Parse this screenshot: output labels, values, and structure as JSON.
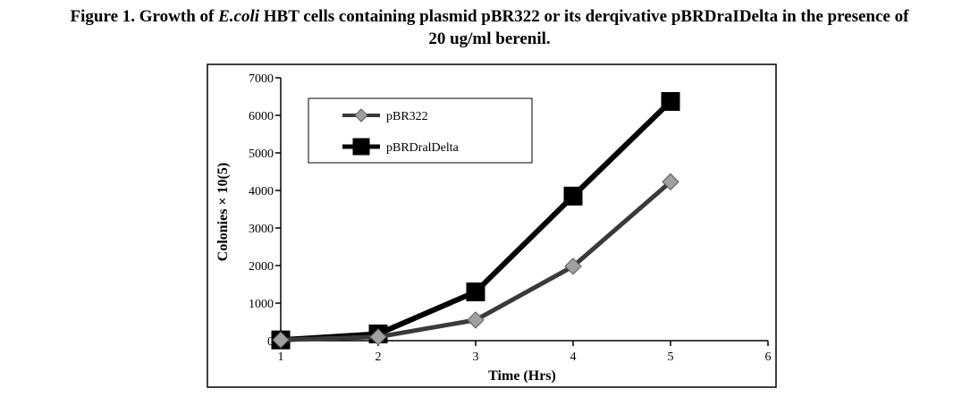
{
  "caption": {
    "prefix": "Figure 1. Growth of ",
    "italic": "E.coli",
    "rest_line1": " HBT cells containing plasmid pBR322 or its derqivative pBRDraIDelta in the presence of",
    "line2": "20 ug/ml berenil."
  },
  "chart_data": {
    "type": "line",
    "title": "",
    "xlabel": "Time (Hrs)",
    "ylabel": "Colonies × 10(5)",
    "xlim": [
      1,
      6
    ],
    "ylim": [
      0,
      7000
    ],
    "xticks": [
      1,
      2,
      3,
      4,
      5,
      6
    ],
    "yticks": [
      0,
      1000,
      2000,
      3000,
      4000,
      5000,
      6000,
      7000
    ],
    "grid": false,
    "legend_position": "top-left",
    "x": [
      1,
      2,
      3,
      4,
      5
    ],
    "series": [
      {
        "name": "pBR322",
        "marker": "diamond",
        "line_color": "#3a3a3a",
        "marker_color": "#a0a0a0",
        "values": [
          20,
          100,
          550,
          1980,
          4230
        ]
      },
      {
        "name": "pBRDralDelta",
        "marker": "square",
        "line_color": "#000000",
        "marker_color": "#000000",
        "values": [
          20,
          180,
          1300,
          3850,
          6370
        ]
      }
    ]
  }
}
